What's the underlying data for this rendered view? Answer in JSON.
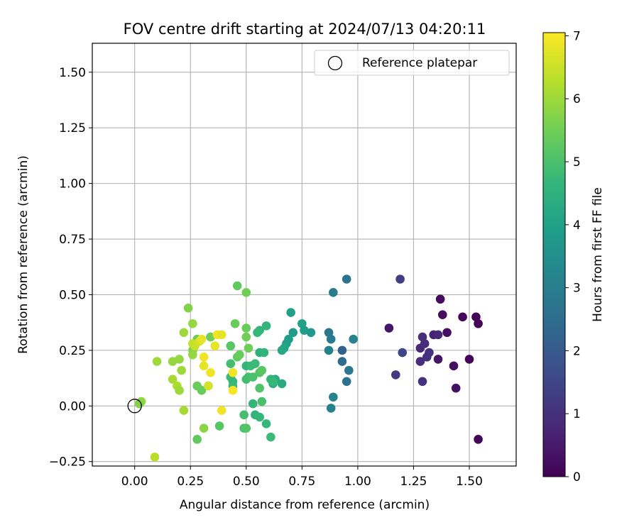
{
  "chart_data": {
    "type": "scatter",
    "title": "FOV centre drift starting at 2024/07/13 04:20:11",
    "xlabel": "Angular distance from reference (arcmin)",
    "ylabel": "Rotation from reference (arcmin)",
    "xlim": [
      -0.19,
      1.71
    ],
    "ylim": [
      -0.27,
      1.63
    ],
    "x_ticks": [
      0.0,
      0.25,
      0.5,
      0.75,
      1.0,
      1.25,
      1.5
    ],
    "x_tick_labels": [
      "0.00",
      "0.25",
      "0.50",
      "0.75",
      "1.00",
      "1.25",
      "1.50"
    ],
    "y_ticks": [
      -0.25,
      0.0,
      0.25,
      0.5,
      0.75,
      1.0,
      1.25,
      1.5
    ],
    "y_tick_labels": [
      "−0.25",
      "0.00",
      "0.25",
      "0.50",
      "0.75",
      "1.00",
      "1.25",
      "1.50"
    ],
    "grid": true,
    "legend": {
      "placement": "top-right",
      "entries": [
        {
          "label": "Reference platepar",
          "marker": "open-circle"
        }
      ]
    },
    "reference": {
      "x": 0.0,
      "y": 0.0
    },
    "colorbar": {
      "label": "Hours from first FF file",
      "min": 0,
      "max": 7.05,
      "ticks": [
        0,
        1,
        2,
        3,
        4,
        5,
        6,
        7
      ],
      "tick_labels": [
        "0",
        "1",
        "2",
        "3",
        "4",
        "5",
        "6",
        "7"
      ],
      "colormap": "viridis",
      "stops": [
        "#440154",
        "#482878",
        "#3e4989",
        "#31688e",
        "#26828e",
        "#1f9e89",
        "#35b779",
        "#6ece58",
        "#b5de2b",
        "#fde725"
      ]
    },
    "points": [
      [
        1.54,
        0.37,
        0.05
      ],
      [
        1.53,
        0.4,
        0.05
      ],
      [
        1.47,
        0.4,
        0.1
      ],
      [
        1.5,
        0.21,
        0.1
      ],
      [
        1.54,
        -0.15,
        0.08
      ],
      [
        1.37,
        0.48,
        0.2
      ],
      [
        1.38,
        0.41,
        0.25
      ],
      [
        1.4,
        0.33,
        0.3
      ],
      [
        1.43,
        0.18,
        0.3
      ],
      [
        1.44,
        0.08,
        0.3
      ],
      [
        1.36,
        0.21,
        0.4
      ],
      [
        1.14,
        0.35,
        0.4
      ],
      [
        1.34,
        0.32,
        0.7
      ],
      [
        1.36,
        0.32,
        0.8
      ],
      [
        1.29,
        0.31,
        0.9
      ],
      [
        1.28,
        0.26,
        0.8
      ],
      [
        1.3,
        0.28,
        0.9
      ],
      [
        1.32,
        0.24,
        1.0
      ],
      [
        1.31,
        0.22,
        1.0
      ],
      [
        1.28,
        0.2,
        0.9
      ],
      [
        1.29,
        0.11,
        1.0
      ],
      [
        1.17,
        0.14,
        1.2
      ],
      [
        1.2,
        0.24,
        1.5
      ],
      [
        1.19,
        0.57,
        1.3
      ],
      [
        0.95,
        0.57,
        2.7
      ],
      [
        0.89,
        0.51,
        3.0
      ],
      [
        0.93,
        0.25,
        2.2
      ],
      [
        0.93,
        0.2,
        2.5
      ],
      [
        0.95,
        0.11,
        2.7
      ],
      [
        0.96,
        0.16,
        2.8
      ],
      [
        0.87,
        0.33,
        2.8
      ],
      [
        0.88,
        0.3,
        2.9
      ],
      [
        0.87,
        0.25,
        3.1
      ],
      [
        0.98,
        0.3,
        3.2
      ],
      [
        0.88,
        -0.01,
        3.1
      ],
      [
        0.89,
        0.04,
        3.2
      ],
      [
        0.7,
        0.42,
        4.0
      ],
      [
        0.75,
        0.37,
        4.0
      ],
      [
        0.76,
        0.34,
        3.9
      ],
      [
        0.79,
        0.33,
        3.8
      ],
      [
        0.71,
        0.33,
        3.9
      ],
      [
        0.69,
        0.3,
        3.9
      ],
      [
        0.68,
        0.28,
        4.0
      ],
      [
        0.67,
        0.26,
        4.1
      ],
      [
        0.66,
        0.25,
        4.2
      ],
      [
        0.66,
        0.1,
        4.3
      ],
      [
        0.63,
        0.12,
        4.3
      ],
      [
        0.62,
        0.1,
        4.4
      ],
      [
        0.61,
        0.12,
        4.6
      ],
      [
        0.62,
        0.11,
        4.7
      ],
      [
        0.59,
        0.36,
        4.6
      ],
      [
        0.56,
        0.34,
        4.6
      ],
      [
        0.55,
        0.33,
        4.7
      ],
      [
        0.56,
        0.24,
        4.5
      ],
      [
        0.58,
        0.24,
        4.6
      ],
      [
        0.5,
        0.18,
        4.6
      ],
      [
        0.52,
        0.18,
        4.8
      ],
      [
        0.54,
        0.19,
        4.8
      ],
      [
        0.51,
        0.13,
        4.9
      ],
      [
        0.5,
        0.12,
        4.9
      ],
      [
        0.53,
        0.13,
        5.0
      ],
      [
        0.56,
        0.15,
        5.1
      ],
      [
        0.57,
        0.16,
        5.2
      ],
      [
        0.56,
        0.08,
        5.1
      ],
      [
        0.57,
        0.02,
        5.0
      ],
      [
        0.53,
        0.01,
        4.6
      ],
      [
        0.54,
        -0.04,
        4.6
      ],
      [
        0.56,
        -0.05,
        4.7
      ],
      [
        0.59,
        -0.08,
        4.7
      ],
      [
        0.61,
        -0.14,
        4.8
      ],
      [
        0.49,
        -0.04,
        4.9
      ],
      [
        0.49,
        -0.1,
        5.0
      ],
      [
        0.5,
        -0.1,
        5.1
      ],
      [
        0.38,
        -0.09,
        5.2
      ],
      [
        0.28,
        -0.15,
        5.3
      ],
      [
        0.43,
        0.13,
        4.8
      ],
      [
        0.44,
        0.11,
        4.7
      ],
      [
        0.44,
        0.09,
        4.8
      ],
      [
        0.43,
        0.19,
        4.9
      ],
      [
        0.46,
        0.22,
        5.3
      ],
      [
        0.47,
        0.23,
        5.4
      ],
      [
        0.5,
        0.31,
        5.5
      ],
      [
        0.5,
        0.35,
        5.4
      ],
      [
        0.43,
        0.27,
        5.2
      ],
      [
        0.45,
        0.37,
        5.4
      ],
      [
        0.46,
        0.54,
        5.3
      ],
      [
        0.5,
        0.51,
        5.5
      ],
      [
        0.51,
        0.26,
        5.5
      ],
      [
        0.34,
        0.31,
        5.3
      ],
      [
        0.28,
        0.3,
        5.4
      ],
      [
        0.33,
        0.09,
        4.9
      ],
      [
        0.28,
        0.09,
        5.4
      ],
      [
        0.3,
        0.07,
        5.4
      ],
      [
        0.34,
        0.31,
        5.5
      ],
      [
        0.31,
        -0.1,
        5.8
      ],
      [
        0.24,
        0.44,
        5.7
      ],
      [
        0.26,
        0.37,
        5.9
      ],
      [
        0.22,
        0.33,
        6.0
      ],
      [
        0.26,
        0.25,
        5.7
      ],
      [
        0.26,
        0.23,
        5.9
      ],
      [
        0.2,
        0.21,
        5.9
      ],
      [
        0.17,
        0.2,
        5.9
      ],
      [
        0.21,
        0.16,
        6.0
      ],
      [
        0.17,
        0.12,
        6.1
      ],
      [
        0.19,
        0.09,
        6.2
      ],
      [
        0.2,
        0.07,
        6.0
      ],
      [
        0.1,
        0.2,
        6.0
      ],
      [
        0.22,
        -0.02,
        6.1
      ],
      [
        0.09,
        -0.23,
        6.3
      ],
      [
        0.03,
        0.02,
        5.9
      ],
      [
        0.02,
        0.01,
        5.7
      ],
      [
        0.26,
        0.28,
        6.4
      ],
      [
        0.27,
        0.27,
        6.5
      ],
      [
        0.29,
        0.29,
        6.6
      ],
      [
        0.3,
        0.3,
        6.8
      ],
      [
        0.31,
        0.22,
        6.9
      ],
      [
        0.31,
        0.18,
        6.8
      ],
      [
        0.34,
        0.15,
        6.9
      ],
      [
        0.33,
        0.09,
        6.6
      ],
      [
        0.36,
        0.27,
        6.8
      ],
      [
        0.37,
        0.32,
        6.9
      ],
      [
        0.39,
        0.32,
        6.8
      ],
      [
        0.44,
        0.15,
        6.9
      ],
      [
        0.44,
        0.07,
        7.0
      ],
      [
        0.39,
        -0.02,
        6.9
      ]
    ]
  }
}
